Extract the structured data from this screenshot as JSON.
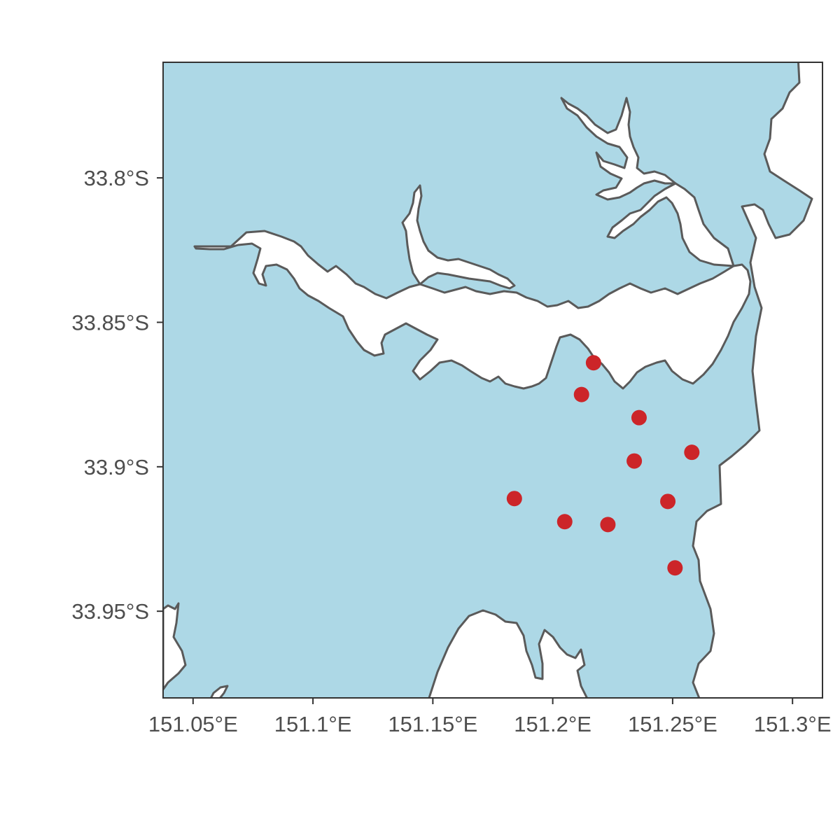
{
  "colors": {
    "land": "#add8e6",
    "water": "#ffffff",
    "coastline": "#5a5a5a",
    "points": "#cc2529",
    "axis_text": "#4d4d4d"
  },
  "chart_data": {
    "type": "scatter",
    "title": "",
    "xlabel": "",
    "ylabel": "",
    "xlim": [
      151.0375,
      151.3125
    ],
    "ylim": [
      -33.98,
      -33.76
    ],
    "x_ticks": [
      {
        "value": 151.05,
        "label": "151.05°E"
      },
      {
        "value": 151.1,
        "label": "151.1°E"
      },
      {
        "value": 151.15,
        "label": "151.15°E"
      },
      {
        "value": 151.2,
        "label": "151.2°E"
      },
      {
        "value": 151.25,
        "label": "151.25°E"
      },
      {
        "value": 151.3,
        "label": "151.3°E"
      }
    ],
    "y_ticks": [
      {
        "value": -33.8,
        "label": "33.8°S"
      },
      {
        "value": -33.85,
        "label": "33.85°S"
      },
      {
        "value": -33.9,
        "label": "33.9°S"
      },
      {
        "value": -33.95,
        "label": "33.95°S"
      }
    ],
    "grid": false,
    "points": [
      {
        "lon": 151.217,
        "lat": -33.864
      },
      {
        "lon": 151.212,
        "lat": -33.875
      },
      {
        "lon": 151.236,
        "lat": -33.883
      },
      {
        "lon": 151.258,
        "lat": -33.895
      },
      {
        "lon": 151.234,
        "lat": -33.898
      },
      {
        "lon": 151.184,
        "lat": -33.911
      },
      {
        "lon": 151.248,
        "lat": -33.912
      },
      {
        "lon": 151.205,
        "lat": -33.919
      },
      {
        "lon": 151.223,
        "lat": -33.92
      },
      {
        "lon": 151.251,
        "lat": -33.935
      }
    ]
  }
}
